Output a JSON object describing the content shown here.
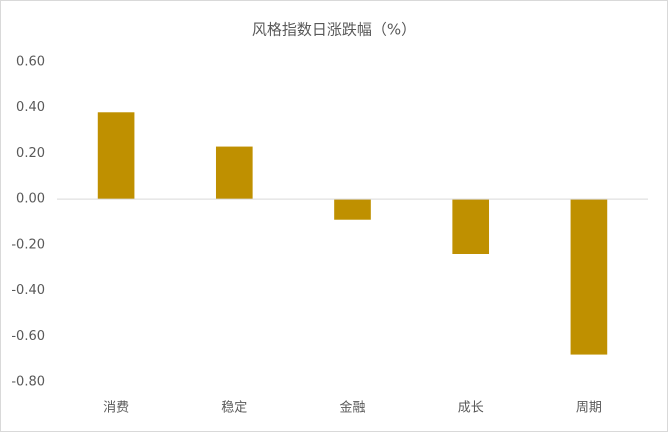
{
  "chart_data": {
    "type": "bar",
    "title": "风格指数日涨跌幅（%）",
    "categories": [
      "消费",
      "稳定",
      "金融",
      "成长",
      "周期"
    ],
    "values": [
      0.38,
      0.23,
      -0.09,
      -0.24,
      -0.68
    ],
    "color": "#bf9000",
    "ylim": [
      -0.8,
      0.6
    ],
    "yticks": [
      {
        "value": -0.8,
        "label": "-0.80"
      },
      {
        "value": -0.6,
        "label": "-0.60"
      },
      {
        "value": -0.4,
        "label": "-0.40"
      },
      {
        "value": -0.2,
        "label": "-0.20"
      },
      {
        "value": 0,
        "label": "0.00"
      },
      {
        "value": 0.2,
        "label": "0.20"
      },
      {
        "value": 0.4,
        "label": "0.40"
      },
      {
        "value": 0.6,
        "label": "0.60"
      }
    ],
    "grid": false
  }
}
